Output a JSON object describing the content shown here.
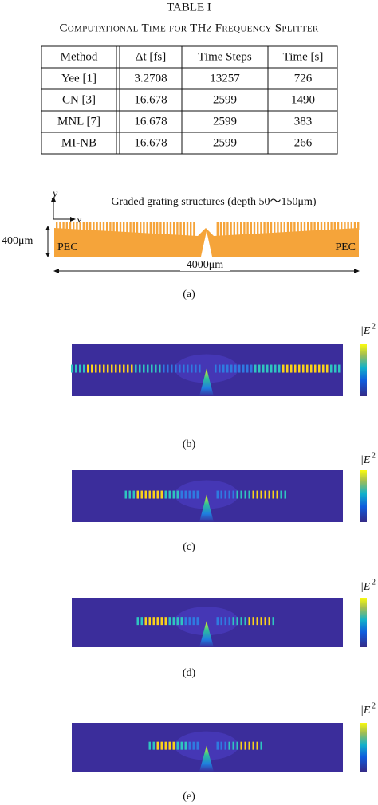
{
  "table": {
    "label": "TABLE I",
    "caption": "Computational Time for THz Frequency Splitter",
    "header": [
      "Method",
      "Δt [fs]",
      "Time Steps",
      "Time [s]"
    ],
    "rows": [
      [
        "Yee [1]",
        "3.2708",
        "13257",
        "726"
      ],
      [
        "CN [3]",
        "16.678",
        "2599",
        "1490"
      ],
      [
        "MNL [7]",
        "16.678",
        "2599",
        "383"
      ],
      [
        "MI-NB",
        "16.678",
        "2599",
        "266"
      ]
    ]
  },
  "structure": {
    "axis_y": "y",
    "axis_x": "x",
    "grating_label": "Graded grating structures (depth 50～150μm)",
    "height_label": "400μm",
    "pec_left": "PEC",
    "pec_right": "PEC",
    "width_label": "4000μm",
    "caption": "(a)"
  },
  "panels": [
    {
      "colorbar_label": "|E|",
      "colorbar_exponent": "2",
      "caption": "(b)"
    },
    {
      "colorbar_label": "|E|",
      "colorbar_exponent": "2",
      "caption": "(c)"
    },
    {
      "colorbar_label": "|E|",
      "colorbar_exponent": "2",
      "caption": "(d)"
    },
    {
      "colorbar_label": "|E|",
      "colorbar_exponent": "2",
      "caption": "(e)"
    }
  ]
}
